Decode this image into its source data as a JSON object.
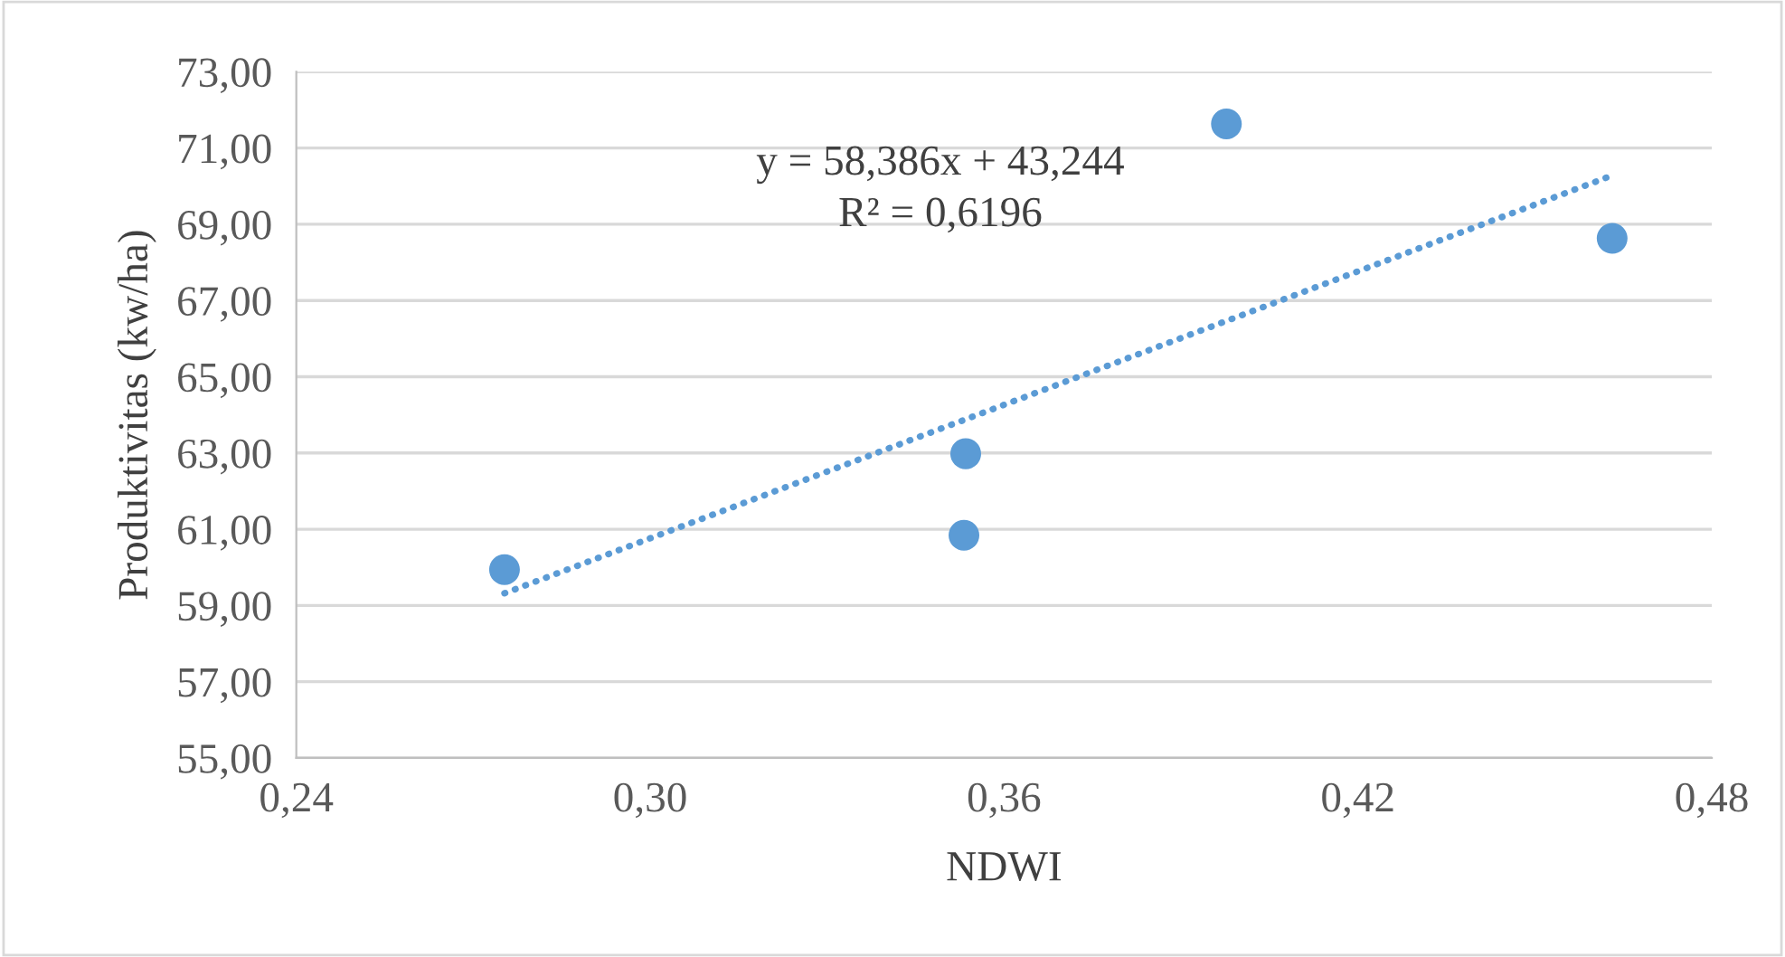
{
  "chart_data": {
    "type": "scatter",
    "xlabel": "NDWI",
    "ylabel": "Produktivitas (kw/ha)",
    "annotations": [
      "y = 58,386x + 43,244",
      "R² = 0,6196"
    ],
    "series": [
      {
        "color": "#5b9bd5",
        "x": [
          0.2753,
          0.3532,
          0.3535,
          0.3977,
          0.4631
        ],
        "values": [
          59.94,
          60.84,
          62.98,
          71.63,
          68.63
        ],
        "marker": "circle"
      },
      {
        "type": "line",
        "color": "#5b9bd5",
        "x": [
          0.2753,
          0.4631
        ],
        "values": [
          59.32,
          70.28
        ],
        "line_style": "dotted"
      }
    ],
    "xlim": [
      0.24,
      0.48
    ],
    "xticks": [
      {
        "value": 0.24,
        "label": "0,24"
      },
      {
        "value": 0.3,
        "label": "0,30"
      },
      {
        "value": 0.36,
        "label": "0,36"
      },
      {
        "value": 0.42,
        "label": "0,42"
      },
      {
        "value": 0.48,
        "label": "0,48"
      }
    ],
    "ylim": [
      55,
      73
    ],
    "yticks": [
      {
        "value": 55,
        "label": "55,00"
      },
      {
        "value": 57,
        "label": "57,00"
      },
      {
        "value": 59,
        "label": "59,00"
      },
      {
        "value": 61,
        "label": "61,00"
      },
      {
        "value": 63,
        "label": "63,00"
      },
      {
        "value": 65,
        "label": "65,00"
      },
      {
        "value": 67,
        "label": "67,00"
      },
      {
        "value": 69,
        "label": "69,00"
      },
      {
        "value": 71,
        "label": "71,00"
      },
      {
        "value": 73,
        "label": "73,00"
      }
    ],
    "grid": "y",
    "legend": false
  }
}
